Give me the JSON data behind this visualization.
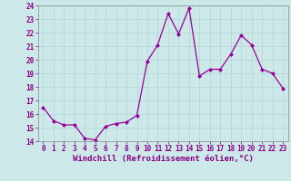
{
  "x": [
    0,
    1,
    2,
    3,
    4,
    5,
    6,
    7,
    8,
    9,
    10,
    11,
    12,
    13,
    14,
    15,
    16,
    17,
    18,
    19,
    20,
    21,
    22,
    23
  ],
  "y": [
    16.5,
    15.5,
    15.2,
    15.2,
    14.2,
    14.1,
    15.1,
    15.3,
    15.4,
    15.9,
    19.9,
    21.1,
    23.4,
    21.9,
    23.8,
    18.8,
    19.3,
    19.3,
    20.4,
    21.8,
    21.1,
    19.3,
    19.0,
    17.9
  ],
  "line_color": "#990099",
  "marker": "D",
  "marker_size": 2.0,
  "linewidth": 0.9,
  "xlabel": "Windchill (Refroidissement éolien,°C)",
  "xlabel_fontsize": 6.5,
  "ylim": [
    14,
    24
  ],
  "xlim": [
    -0.5,
    23.5
  ],
  "yticks": [
    14,
    15,
    16,
    17,
    18,
    19,
    20,
    21,
    22,
    23,
    24
  ],
  "xticks": [
    0,
    1,
    2,
    3,
    4,
    5,
    6,
    7,
    8,
    9,
    10,
    11,
    12,
    13,
    14,
    15,
    16,
    17,
    18,
    19,
    20,
    21,
    22,
    23
  ],
  "grid_color": "#b0d8d8",
  "bg_color": "#cce8e8",
  "tick_fontsize": 5.5,
  "xlabel_color": "#880088",
  "ylabel_color": "#880088",
  "spine_color": "#888888"
}
